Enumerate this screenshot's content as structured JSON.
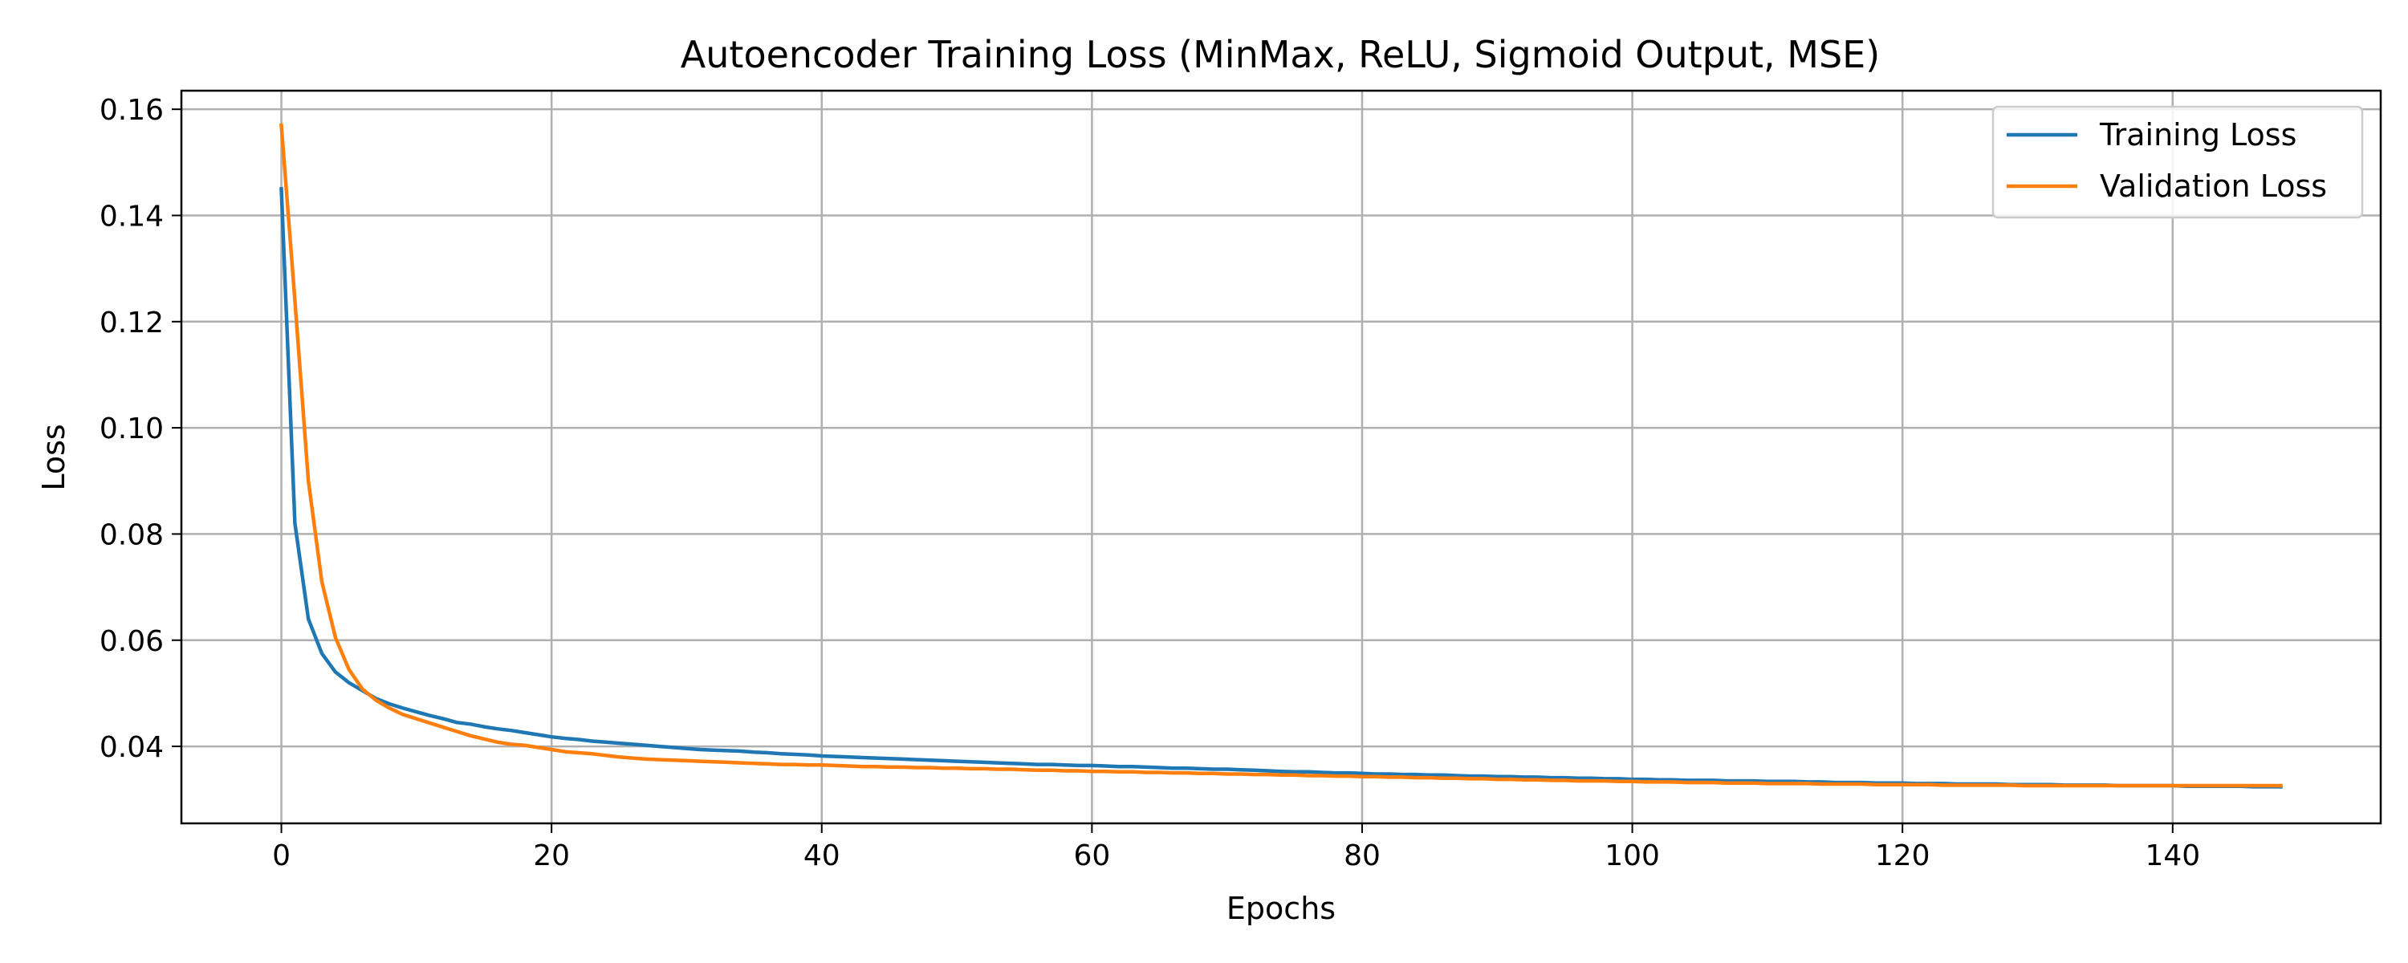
{
  "chart_data": {
    "type": "line",
    "title": "Autoencoder Training Loss (MinMax, ReLU, Sigmoid Output, MSE)",
    "xlabel": "Epochs",
    "ylabel": "Loss",
    "xlim": [
      -7.4,
      155.4
    ],
    "ylim": [
      0.0255,
      0.1635
    ],
    "xticks": [
      0,
      20,
      40,
      60,
      80,
      100,
      120,
      140
    ],
    "yticks": [
      0.04,
      0.06,
      0.08,
      0.1,
      0.12,
      0.14,
      0.16
    ],
    "ytick_labels": [
      "0.04",
      "0.06",
      "0.08",
      "0.10",
      "0.12",
      "0.14",
      "0.16"
    ],
    "grid": true,
    "legend_position": "top-right",
    "series": [
      {
        "name": "Training Loss",
        "color": "#1f77b4",
        "x": [
          0,
          1,
          2,
          3,
          4,
          5,
          6,
          7,
          8,
          9,
          10,
          11,
          12,
          13,
          14,
          15,
          16,
          17,
          18,
          19,
          20,
          21,
          22,
          23,
          24,
          25,
          26,
          27,
          28,
          29,
          30,
          31,
          32,
          33,
          34,
          35,
          36,
          37,
          38,
          39,
          40,
          41,
          42,
          43,
          44,
          45,
          46,
          47,
          48,
          49,
          50,
          51,
          52,
          53,
          54,
          55,
          56,
          57,
          58,
          59,
          60,
          61,
          62,
          63,
          64,
          65,
          66,
          67,
          68,
          69,
          70,
          71,
          72,
          73,
          74,
          75,
          76,
          77,
          78,
          79,
          80,
          81,
          82,
          83,
          84,
          85,
          86,
          87,
          88,
          89,
          90,
          91,
          92,
          93,
          94,
          95,
          96,
          97,
          98,
          99,
          100,
          101,
          102,
          103,
          104,
          105,
          106,
          107,
          108,
          109,
          110,
          111,
          112,
          113,
          114,
          115,
          116,
          117,
          118,
          119,
          120,
          121,
          122,
          123,
          124,
          125,
          126,
          127,
          128,
          129,
          130,
          131,
          132,
          133,
          134,
          135,
          136,
          137,
          138,
          139,
          140,
          141,
          142,
          143,
          144,
          145,
          146,
          147,
          148
        ],
        "y": [
          0.145,
          0.082,
          0.064,
          0.0575,
          0.054,
          0.052,
          0.0505,
          0.049,
          0.048,
          0.0472,
          0.0465,
          0.0458,
          0.0452,
          0.0445,
          0.0442,
          0.0437,
          0.0433,
          0.043,
          0.0426,
          0.0422,
          0.0418,
          0.0415,
          0.0413,
          0.041,
          0.0408,
          0.0406,
          0.0404,
          0.0402,
          0.04,
          0.0398,
          0.0396,
          0.0394,
          0.0393,
          0.0392,
          0.0391,
          0.0389,
          0.0388,
          0.0386,
          0.0385,
          0.0384,
          0.0382,
          0.0381,
          0.038,
          0.0379,
          0.0378,
          0.0377,
          0.0376,
          0.0375,
          0.0374,
          0.0373,
          0.0372,
          0.0371,
          0.037,
          0.0369,
          0.0368,
          0.0367,
          0.0366,
          0.0366,
          0.0365,
          0.0364,
          0.0364,
          0.0363,
          0.0362,
          0.0362,
          0.0361,
          0.036,
          0.0359,
          0.0359,
          0.0358,
          0.0357,
          0.0357,
          0.0356,
          0.0355,
          0.0354,
          0.0353,
          0.0352,
          0.0352,
          0.0351,
          0.035,
          0.035,
          0.0349,
          0.0348,
          0.0348,
          0.0347,
          0.0347,
          0.0346,
          0.0346,
          0.0345,
          0.0344,
          0.0344,
          0.0343,
          0.0343,
          0.0342,
          0.0342,
          0.0341,
          0.0341,
          0.034,
          0.034,
          0.0339,
          0.0339,
          0.0338,
          0.0338,
          0.0337,
          0.0337,
          0.0336,
          0.0336,
          0.0336,
          0.0335,
          0.0335,
          0.0335,
          0.0334,
          0.0334,
          0.0334,
          0.0333,
          0.0333,
          0.0332,
          0.0332,
          0.0332,
          0.0331,
          0.0331,
          0.0331,
          0.033,
          0.033,
          0.033,
          0.0329,
          0.0329,
          0.0329,
          0.0329,
          0.0328,
          0.0328,
          0.0328,
          0.0328,
          0.0327,
          0.0327,
          0.0327,
          0.0327,
          0.0326,
          0.0326,
          0.0326,
          0.0326,
          0.0326,
          0.0325,
          0.0325,
          0.0325,
          0.0325,
          0.0325,
          0.0324,
          0.0324,
          0.0324
        ]
      },
      {
        "name": "Validation Loss",
        "color": "#ff7f0e",
        "x": [
          0,
          1,
          2,
          3,
          4,
          5,
          6,
          7,
          8,
          9,
          10,
          11,
          12,
          13,
          14,
          15,
          16,
          17,
          18,
          19,
          20,
          21,
          22,
          23,
          24,
          25,
          26,
          27,
          28,
          29,
          30,
          31,
          32,
          33,
          34,
          35,
          36,
          37,
          38,
          39,
          40,
          41,
          42,
          43,
          44,
          45,
          46,
          47,
          48,
          49,
          50,
          51,
          52,
          53,
          54,
          55,
          56,
          57,
          58,
          59,
          60,
          61,
          62,
          63,
          64,
          65,
          66,
          67,
          68,
          69,
          70,
          71,
          72,
          73,
          74,
          75,
          76,
          77,
          78,
          79,
          80,
          81,
          82,
          83,
          84,
          85,
          86,
          87,
          88,
          89,
          90,
          91,
          92,
          93,
          94,
          95,
          96,
          97,
          98,
          99,
          100,
          101,
          102,
          103,
          104,
          105,
          106,
          107,
          108,
          109,
          110,
          111,
          112,
          113,
          114,
          115,
          116,
          117,
          118,
          119,
          120,
          121,
          122,
          123,
          124,
          125,
          126,
          127,
          128,
          129,
          130,
          131,
          132,
          133,
          134,
          135,
          136,
          137,
          138,
          139,
          140,
          141,
          142,
          143,
          144,
          145,
          146,
          147,
          148
        ],
        "y": [
          0.157,
          0.124,
          0.09,
          0.071,
          0.0605,
          0.0545,
          0.0508,
          0.0487,
          0.0472,
          0.046,
          0.0452,
          0.0444,
          0.0436,
          0.0428,
          0.042,
          0.0414,
          0.0408,
          0.0404,
          0.0402,
          0.0398,
          0.0394,
          0.039,
          0.0388,
          0.0386,
          0.0383,
          0.038,
          0.0378,
          0.0376,
          0.0375,
          0.0374,
          0.0373,
          0.0372,
          0.0371,
          0.037,
          0.0369,
          0.0368,
          0.0367,
          0.0366,
          0.0366,
          0.0365,
          0.0365,
          0.0364,
          0.0363,
          0.0362,
          0.0362,
          0.0361,
          0.0361,
          0.036,
          0.036,
          0.0359,
          0.0359,
          0.0358,
          0.0358,
          0.0357,
          0.0357,
          0.0356,
          0.0355,
          0.0355,
          0.0354,
          0.0354,
          0.0353,
          0.0353,
          0.0352,
          0.0352,
          0.0351,
          0.0351,
          0.035,
          0.035,
          0.0349,
          0.0349,
          0.0348,
          0.0348,
          0.0347,
          0.0347,
          0.0346,
          0.0346,
          0.0345,
          0.0345,
          0.0344,
          0.0344,
          0.0343,
          0.0343,
          0.0342,
          0.0342,
          0.0341,
          0.0341,
          0.034,
          0.034,
          0.0339,
          0.0339,
          0.0338,
          0.0338,
          0.0337,
          0.0337,
          0.0336,
          0.0336,
          0.0335,
          0.0335,
          0.0335,
          0.0334,
          0.0334,
          0.0333,
          0.0333,
          0.0333,
          0.0332,
          0.0332,
          0.0332,
          0.0331,
          0.0331,
          0.0331,
          0.033,
          0.033,
          0.033,
          0.033,
          0.0329,
          0.0329,
          0.0329,
          0.0329,
          0.0328,
          0.0328,
          0.0328,
          0.0328,
          0.0328,
          0.0327,
          0.0327,
          0.0327,
          0.0327,
          0.0327,
          0.0327,
          0.0326,
          0.0326,
          0.0326,
          0.0326,
          0.0326,
          0.0326,
          0.0326,
          0.0326,
          0.0326,
          0.0326,
          0.0326,
          0.0326,
          0.0326,
          0.0326,
          0.0326,
          0.0326,
          0.0326,
          0.0326,
          0.0326,
          0.0326
        ]
      }
    ]
  }
}
